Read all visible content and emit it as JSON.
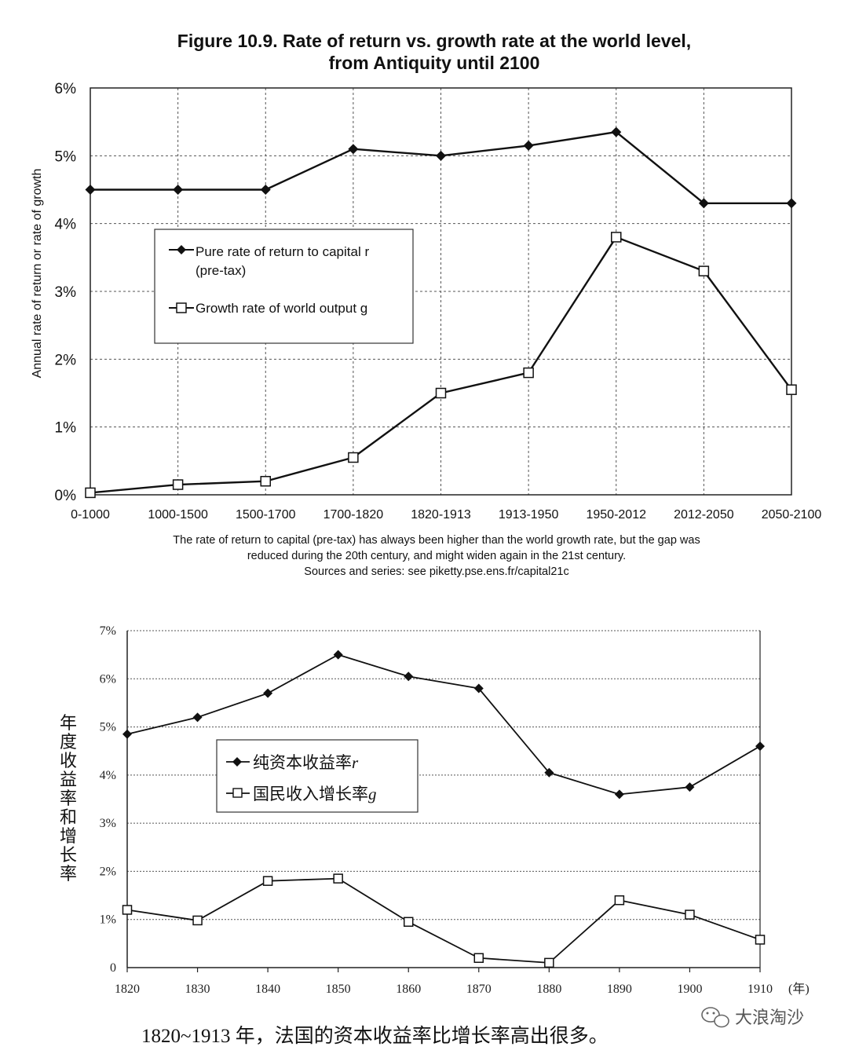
{
  "watermark": {
    "text": "大浪淘沙",
    "icon": "wechat-icon"
  },
  "chart_data": [
    {
      "type": "line",
      "title": "Figure 10.9. Rate of return vs. growth rate at the world level,",
      "subtitle": "from Antiquity until 2100",
      "ylabel": "Annual rate of return or rate of growth",
      "xlabel": "",
      "ylim": [
        0,
        6
      ],
      "y_ticks": [
        "0%",
        "1%",
        "2%",
        "3%",
        "4%",
        "5%",
        "6%"
      ],
      "categories": [
        "0-1000",
        "1000-1500",
        "1500-1700",
        "1700-1820",
        "1820-1913",
        "1913-1950",
        "1950-2012",
        "2012-2050",
        "2050-2100"
      ],
      "grid": true,
      "legend_placement": "center-left",
      "series": [
        {
          "name": "Pure rate of return to capital r",
          "name2": "(pre-tax)",
          "marker": "filled-diamond",
          "values": [
            4.5,
            4.5,
            4.5,
            5.1,
            5.0,
            5.15,
            5.35,
            4.3,
            4.3
          ]
        },
        {
          "name": "Growth rate of world output g",
          "marker": "open-square",
          "values": [
            0.03,
            0.15,
            0.2,
            0.55,
            1.5,
            1.8,
            3.8,
            3.3,
            1.55
          ]
        }
      ],
      "caption": [
        "The rate of return to capital (pre-tax) has always been higher than the world growth rate, but the gap was",
        "reduced during the 20th century, and might widen again in the 21st century.",
        "Sources and series: see piketty.pse.ens.fr/capital21c"
      ]
    },
    {
      "type": "line",
      "title": "",
      "ylabel": "年度收益率和增长率",
      "xlabel": "(年)",
      "ylim": [
        0,
        7
      ],
      "y_ticks": [
        "0",
        "1%",
        "2%",
        "3%",
        "4%",
        "5%",
        "6%",
        "7%"
      ],
      "categories": [
        "1820",
        "1830",
        "1840",
        "1850",
        "1860",
        "1870",
        "1880",
        "1890",
        "1900",
        "1910"
      ],
      "grid": true,
      "legend_placement": "center-left",
      "series": [
        {
          "name": "纯资本收益率",
          "symbol": "r",
          "marker": "filled-diamond",
          "values": [
            4.85,
            5.2,
            5.7,
            6.5,
            6.05,
            5.8,
            4.05,
            3.6,
            3.75,
            4.6
          ]
        },
        {
          "name": "国民收入增长率",
          "symbol": "g",
          "marker": "open-square",
          "values": [
            1.2,
            0.98,
            1.8,
            1.85,
            0.95,
            0.2,
            0.1,
            1.4,
            1.1,
            0.58
          ]
        }
      ],
      "caption": [
        "1820~1913 年，法国的资本收益率比增长率高出很多。"
      ]
    }
  ]
}
